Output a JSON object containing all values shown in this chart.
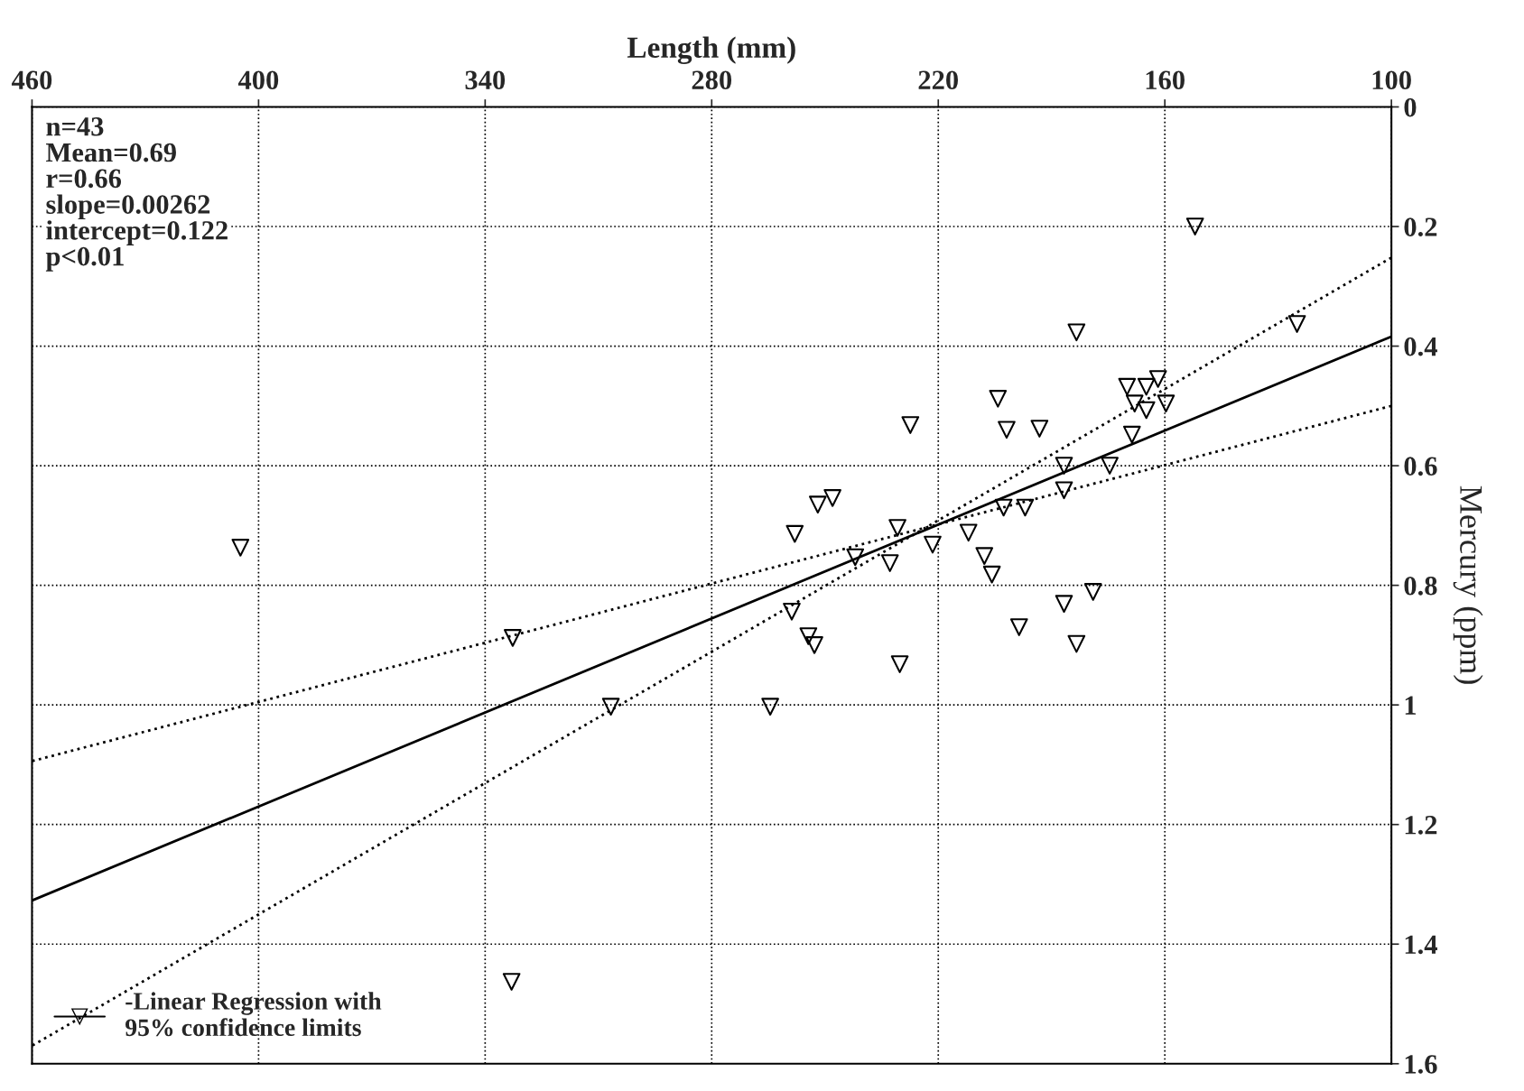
{
  "chart_data": {
    "type": "scatter",
    "xlabel": "Length (mm)",
    "ylabel": "Mercury (ppm)",
    "xlim": [
      460,
      100
    ],
    "ylim": [
      1.6,
      0
    ],
    "xticks": [
      100,
      160,
      220,
      280,
      340,
      400,
      460
    ],
    "yticks": [
      0,
      0.2,
      0.4,
      0.6,
      0.8,
      1,
      1.2,
      1.4,
      1.6
    ],
    "grid": true,
    "legend": "bottom left",
    "marker": "triangle",
    "annotations": [
      "n=43\nMean=0.69\nr=0.66\nslope=0.00262\nintercept=0.122\np<0.01"
    ],
    "series": [
      {
        "color": "#000000",
        "marker": "triangle",
        "x": [
          152,
          125,
          183.4,
          161.8,
          170,
          164.9,
          159.7,
          168,
          164.9,
          204.2,
          227.4,
          201.9,
          193.2,
          168.7,
          174.6,
          186.7,
          186.7,
          248,
          251.9,
          197,
          202.7,
          230.8,
          258,
          212,
          221.5,
          207.8,
          242,
          232.8,
          205.8,
          404.8,
          179,
          186.7,
          258.8,
          198.6,
          254.4,
          252.8,
          183.4,
          332.7,
          230.2,
          306.7,
          264.5,
          333
        ],
        "values": [
          0.2,
          0.363,
          0.377,
          0.455,
          0.468,
          0.468,
          0.496,
          0.496,
          0.507,
          0.488,
          0.532,
          0.54,
          0.538,
          0.548,
          0.6,
          0.6,
          0.641,
          0.654,
          0.665,
          0.67,
          0.67,
          0.704,
          0.714,
          0.712,
          0.732,
          0.751,
          0.753,
          0.763,
          0.782,
          0.737,
          0.811,
          0.831,
          0.844,
          0.87,
          0.885,
          0.9,
          0.898,
          0.888,
          0.932,
          1.003,
          1.003,
          1.463
        ]
      },
      {
        "type": "line",
        "name": "-Linear Regression with\n95% confidence limits",
        "color": "#000000",
        "line_style": "solid",
        "marker": "none",
        "x": [
          100,
          460
        ],
        "values": [
          0.384,
          1.327
        ]
      },
      {
        "type": "line",
        "color": "#000000",
        "line_style": "dotted",
        "marker": "none",
        "x": [
          100,
          460
        ],
        "values": [
          0.252,
          1.57
        ]
      },
      {
        "type": "line",
        "color": "#000000",
        "line_style": "dotted",
        "marker": "none",
        "x": [
          100,
          460
        ],
        "values": [
          0.5,
          1.094
        ]
      }
    ]
  }
}
